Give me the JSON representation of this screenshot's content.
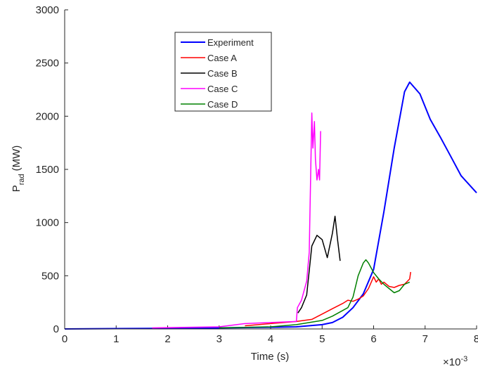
{
  "chart_data": {
    "type": "line",
    "title": "",
    "xlabel": "Time (s)",
    "ylabel": "P",
    "ylabel_subscript": "rad",
    "ylabel_unit": "(MW)",
    "xlim": [
      0,
      0.008
    ],
    "ylim": [
      0,
      3000
    ],
    "x_ticks": [
      0,
      1,
      2,
      3,
      4,
      5,
      6,
      7,
      8
    ],
    "y_ticks": [
      0,
      500,
      1000,
      1500,
      2000,
      2500,
      3000
    ],
    "x_multiplier_base": "×10",
    "x_multiplier_exp": "-3",
    "grid": false,
    "legend_position": "upper-left-center",
    "series": [
      {
        "name": "Experiment",
        "color": "#0000ff",
        "width": 2,
        "x": [
          0,
          0.001,
          0.002,
          0.003,
          0.004,
          0.0045,
          0.005,
          0.0052,
          0.0054,
          0.0056,
          0.0058,
          0.006,
          0.0062,
          0.0064,
          0.0066,
          0.0067,
          0.0069,
          0.0071,
          0.0073,
          0.0075,
          0.0077,
          0.008
        ],
        "y": [
          0,
          3,
          6,
          10,
          16,
          20,
          40,
          60,
          110,
          200,
          330,
          560,
          1100,
          1700,
          2230,
          2320,
          2210,
          1970,
          1800,
          1620,
          1440,
          1280
        ]
      },
      {
        "name": "Case A",
        "color": "#ff0000",
        "width": 1.5,
        "x": [
          0.0035,
          0.004,
          0.0045,
          0.0048,
          0.005,
          0.0052,
          0.0054,
          0.0055,
          0.0056,
          0.0057,
          0.0058,
          0.0059,
          0.006,
          0.00605,
          0.0061,
          0.00615,
          0.0062,
          0.0063,
          0.0064,
          0.0065,
          0.0066,
          0.0067,
          0.00672
        ],
        "y": [
          30,
          50,
          70,
          90,
          140,
          190,
          240,
          270,
          260,
          280,
          310,
          380,
          490,
          440,
          470,
          420,
          440,
          400,
          390,
          410,
          420,
          470,
          535
        ]
      },
      {
        "name": "Case B",
        "color": "#000000",
        "width": 1.5,
        "x": [
          0.00453,
          0.0046,
          0.0047,
          0.0048,
          0.0049,
          0.005,
          0.0051,
          0.0052,
          0.00525,
          0.0053,
          0.00535
        ],
        "y": [
          150,
          200,
          320,
          780,
          880,
          840,
          670,
          900,
          1060,
          840,
          640
        ]
      },
      {
        "name": "Case C",
        "color": "#ff00ff",
        "width": 1.5,
        "x": [
          0.0017,
          0.003,
          0.0035,
          0.004,
          0.0045,
          0.00452,
          0.0046,
          0.0047,
          0.00475,
          0.0048,
          0.00482,
          0.00485,
          0.00487,
          0.0049,
          0.00493,
          0.00495,
          0.00497
        ],
        "y": [
          10,
          20,
          50,
          60,
          70,
          200,
          270,
          450,
          720,
          2030,
          1700,
          1950,
          1600,
          1400,
          1500,
          1400,
          1860
        ]
      },
      {
        "name": "Case D",
        "color": "#008000",
        "width": 1.5,
        "x": [
          0.003,
          0.004,
          0.0045,
          0.005,
          0.0052,
          0.0055,
          0.0056,
          0.0057,
          0.0058,
          0.00585,
          0.0059,
          0.006,
          0.0061,
          0.0062,
          0.0063,
          0.0064,
          0.0065,
          0.0066,
          0.0067
        ],
        "y": [
          10,
          20,
          40,
          80,
          120,
          200,
          300,
          500,
          620,
          650,
          620,
          530,
          470,
          420,
          380,
          340,
          360,
          420,
          440
        ]
      }
    ]
  }
}
